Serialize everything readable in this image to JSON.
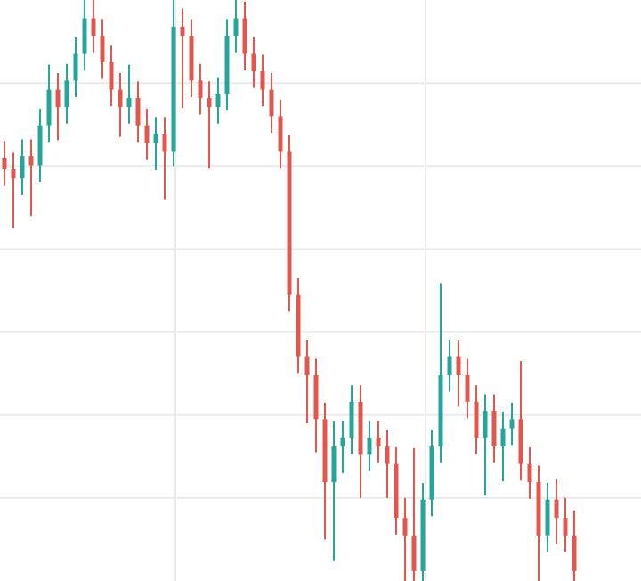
{
  "chart_data": {
    "type": "candlestick",
    "open": [
      5.1,
      4.96,
      4.85,
      5.12,
      5.01,
      5.49,
      5.92,
      5.71,
      6.03,
      6.35,
      6.78,
      6.57,
      6.25,
      5.92,
      5.71,
      5.82,
      5.49,
      5.28,
      5.39,
      5.17,
      6.68,
      6.57,
      6.03,
      5.82,
      5.71,
      5.87,
      6.57,
      6.78,
      6.35,
      6.14,
      5.92,
      5.6,
      5.17,
      3.45,
      2.7,
      2.48,
      1.95,
      1.19,
      1.62,
      1.73,
      2.16,
      1.52,
      1.73,
      1.62,
      1.41,
      0.76,
      0.55,
      0.12,
      0.98,
      1.62,
      2.48,
      2.7,
      2.48,
      2.16,
      1.73,
      2.05,
      1.62,
      1.84,
      1.95,
      1.41,
      1.19,
      0.55,
      0.98,
      0.76,
      0.55
    ],
    "high": [
      5.3,
      5.16,
      5.32,
      5.32,
      5.69,
      6.22,
      6.12,
      6.23,
      6.55,
      7.1,
      7.1,
      6.77,
      6.45,
      6.12,
      6.22,
      6.02,
      5.69,
      5.59,
      5.59,
      7.0,
      6.9,
      6.77,
      6.23,
      6.02,
      6.07,
      6.77,
      7.1,
      6.98,
      6.55,
      6.34,
      6.12,
      5.8,
      5.37,
      3.65,
      2.9,
      2.68,
      2.15,
      1.92,
      1.93,
      2.36,
      2.36,
      1.93,
      1.93,
      1.82,
      1.61,
      1.0,
      1.6,
      1.18,
      1.82,
      3.58,
      2.9,
      2.9,
      2.68,
      2.36,
      2.25,
      2.25,
      2.04,
      2.15,
      2.65,
      1.61,
      1.39,
      1.18,
      1.23,
      1.0,
      0.85
    ],
    "low": [
      4.76,
      4.25,
      4.65,
      4.4,
      4.81,
      5.29,
      5.31,
      5.51,
      5.83,
      6.15,
      6.37,
      6.05,
      5.72,
      5.35,
      5.51,
      5.29,
      5.08,
      4.95,
      4.6,
      5.0,
      5.7,
      5.83,
      5.62,
      4.97,
      5.51,
      5.67,
      6.37,
      6.15,
      5.94,
      5.72,
      5.4,
      4.97,
      3.25,
      2.5,
      1.9,
      1.55,
      0.5,
      0.25,
      1.3,
      1.53,
      1.0,
      1.32,
      1.42,
      1.0,
      0.56,
      -0.1,
      -0.1,
      -0.1,
      0.78,
      1.42,
      2.28,
      2.1,
      1.96,
      1.53,
      1.03,
      1.42,
      1.2,
      1.64,
      1.21,
      0.99,
      0.0,
      0.35,
      0.45,
      0.35,
      -0.1
    ],
    "close": [
      4.96,
      4.85,
      5.12,
      5.01,
      5.49,
      5.92,
      5.71,
      6.03,
      6.35,
      6.78,
      6.57,
      6.25,
      5.92,
      5.71,
      5.82,
      5.49,
      5.28,
      5.39,
      5.17,
      6.68,
      6.57,
      6.03,
      5.82,
      5.71,
      5.87,
      6.57,
      6.78,
      6.35,
      6.14,
      5.92,
      5.6,
      5.17,
      3.45,
      2.7,
      2.48,
      1.95,
      1.19,
      1.62,
      1.73,
      2.16,
      1.52,
      1.73,
      1.62,
      1.41,
      0.76,
      0.55,
      0.12,
      0.98,
      1.62,
      2.48,
      2.7,
      2.48,
      2.16,
      1.73,
      2.05,
      1.62,
      1.84,
      1.95,
      1.41,
      1.19,
      0.55,
      0.98,
      0.76,
      0.55,
      0.12
    ],
    "up_color": "#26a69a",
    "down_color": "#e0574f",
    "ylim": [
      0,
      7
    ],
    "yticks": [
      1,
      2,
      3,
      4,
      5,
      6
    ],
    "grid": true
  }
}
